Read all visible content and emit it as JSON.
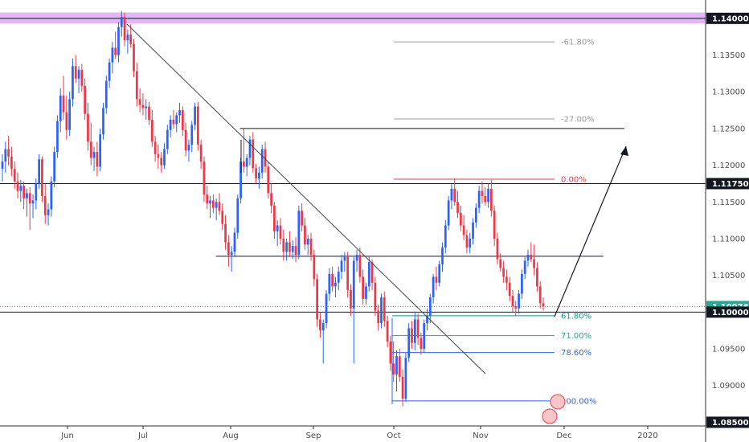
{
  "chart_data": {
    "type": "candlestick",
    "x_ticks": [
      "Jun",
      "Jul",
      "Aug",
      "Sep",
      "Oct",
      "Nov",
      "Dec",
      "2020"
    ],
    "y_ticks": [
      "1.13500",
      "1.13000",
      "1.12500",
      "1.12000",
      "1.11500",
      "1.11000",
      "1.10500",
      "1.09500",
      "1.09000"
    ],
    "ylim": [
      1.0845,
      1.1425
    ],
    "highlighted_prices": [
      {
        "label": "1.14000",
        "value": 1.14,
        "color": "#131722"
      },
      {
        "label": "1.11750",
        "value": 1.1175,
        "color": "#131722"
      },
      {
        "label": "1.10076",
        "value": 1.10076,
        "color": "#22ab94"
      },
      {
        "label": "1.10000",
        "value": 1.1,
        "color": "#131722"
      },
      {
        "label": "1.08500",
        "value": 1.085,
        "color": "#131722"
      }
    ],
    "fib_levels": [
      {
        "label": "-61.80%",
        "value": 1.1368,
        "color": "#9b9b9b"
      },
      {
        "label": "-27.00%",
        "value": 1.1263,
        "color": "#9b9b9b"
      },
      {
        "label": "0.00%",
        "value": 1.1181,
        "color": "#f23645"
      },
      {
        "label": "61.80%",
        "value": 1.0995,
        "color": "#089981"
      },
      {
        "label": "71.00%",
        "value": 1.0968,
        "color": "#26a69a"
      },
      {
        "label": "78.60%",
        "value": 1.0945,
        "color": "#2962ff"
      },
      {
        "label": "100.00%",
        "value": 1.0879,
        "color": "#2962ff"
      }
    ],
    "horizontal_lines": [
      {
        "value": 1.14,
        "from": 0,
        "to": 1
      },
      {
        "value": 1.1175,
        "from": 0,
        "to": 1
      },
      {
        "value": 1.1,
        "from": 0,
        "to": 1
      },
      {
        "value": 1.1076,
        "from": 0.306,
        "to": 0.855
      },
      {
        "value": 1.125,
        "from": 0.34,
        "to": 0.885
      }
    ],
    "zone": {
      "from": 1.1393,
      "to": 1.1408,
      "color": "#e0b8f5"
    },
    "candles": [
      [
        1.1195,
        1.1215,
        1.1178,
        1.1205
      ],
      [
        1.1205,
        1.1232,
        1.119,
        1.1222
      ],
      [
        1.1222,
        1.124,
        1.12,
        1.1212
      ],
      [
        1.1212,
        1.1225,
        1.1185,
        1.1195
      ],
      [
        1.1195,
        1.1205,
        1.1168,
        1.1178
      ],
      [
        1.1178,
        1.119,
        1.1155,
        1.1165
      ],
      [
        1.1165,
        1.118,
        1.115,
        1.1172
      ],
      [
        1.1172,
        1.1178,
        1.114,
        1.1155
      ],
      [
        1.1155,
        1.1168,
        1.113,
        1.1162
      ],
      [
        1.1162,
        1.117,
        1.1112,
        1.1148
      ],
      [
        1.1148,
        1.116,
        1.1128,
        1.1152
      ],
      [
        1.1152,
        1.1182,
        1.114,
        1.1175
      ],
      [
        1.1175,
        1.1215,
        1.1168,
        1.1208
      ],
      [
        1.1208,
        1.1212,
        1.115,
        1.1158
      ],
      [
        1.1158,
        1.1175,
        1.112,
        1.1132
      ],
      [
        1.1132,
        1.1148,
        1.1118,
        1.114
      ],
      [
        1.114,
        1.1185,
        1.113,
        1.1178
      ],
      [
        1.1178,
        1.1225,
        1.117,
        1.1218
      ],
      [
        1.1218,
        1.1268,
        1.121,
        1.126
      ],
      [
        1.126,
        1.1305,
        1.1245,
        1.1295
      ],
      [
        1.1295,
        1.1322,
        1.1262,
        1.1272
      ],
      [
        1.1272,
        1.1295,
        1.1235,
        1.1248
      ],
      [
        1.1248,
        1.13,
        1.124,
        1.129
      ],
      [
        1.129,
        1.1345,
        1.128,
        1.1335
      ],
      [
        1.1335,
        1.135,
        1.1312,
        1.1318
      ],
      [
        1.1318,
        1.1335,
        1.1298,
        1.133
      ],
      [
        1.133,
        1.1338,
        1.13,
        1.1308
      ],
      [
        1.1308,
        1.1318,
        1.1262,
        1.127
      ],
      [
        1.127,
        1.1285,
        1.122,
        1.1232
      ],
      [
        1.1232,
        1.1258,
        1.12,
        1.121
      ],
      [
        1.121,
        1.1225,
        1.1192,
        1.1218
      ],
      [
        1.1218,
        1.1232,
        1.1185,
        1.1198
      ],
      [
        1.1198,
        1.125,
        1.1192,
        1.1242
      ],
      [
        1.1242,
        1.1285,
        1.1235,
        1.1278
      ],
      [
        1.1278,
        1.1322,
        1.127,
        1.1315
      ],
      [
        1.1315,
        1.1345,
        1.1305,
        1.134
      ],
      [
        1.134,
        1.1368,
        1.1325,
        1.136
      ],
      [
        1.136,
        1.1382,
        1.1345,
        1.135
      ],
      [
        1.135,
        1.1395,
        1.134,
        1.1388
      ],
      [
        1.1388,
        1.141,
        1.1375,
        1.1402
      ],
      [
        1.1402,
        1.1408,
        1.1362,
        1.137
      ],
      [
        1.137,
        1.1385,
        1.1352,
        1.1378
      ],
      [
        1.1378,
        1.1392,
        1.136,
        1.1365
      ],
      [
        1.1365,
        1.1372,
        1.132,
        1.1328
      ],
      [
        1.1328,
        1.134,
        1.128,
        1.129
      ],
      [
        1.129,
        1.1305,
        1.1272,
        1.1282
      ],
      [
        1.1282,
        1.1298,
        1.1268,
        1.1278
      ],
      [
        1.1278,
        1.129,
        1.1262,
        1.128
      ],
      [
        1.128,
        1.1286,
        1.1255,
        1.1262
      ],
      [
        1.1262,
        1.1275,
        1.1225,
        1.1232
      ],
      [
        1.1232,
        1.124,
        1.1205,
        1.1215
      ],
      [
        1.1215,
        1.1228,
        1.1195,
        1.121
      ],
      [
        1.121,
        1.1218,
        1.119,
        1.12
      ],
      [
        1.12,
        1.123,
        1.1195,
        1.1222
      ],
      [
        1.1222,
        1.1255,
        1.1215,
        1.1248
      ],
      [
        1.1248,
        1.1268,
        1.1238,
        1.1262
      ],
      [
        1.1262,
        1.1275,
        1.125,
        1.1256
      ],
      [
        1.1256,
        1.1272,
        1.1245,
        1.1268
      ],
      [
        1.1268,
        1.1285,
        1.1258,
        1.1275
      ],
      [
        1.1275,
        1.128,
        1.124,
        1.1248
      ],
      [
        1.1248,
        1.1258,
        1.1212,
        1.122
      ],
      [
        1.122,
        1.1235,
        1.1205,
        1.1228
      ],
      [
        1.1228,
        1.126,
        1.1218,
        1.1255
      ],
      [
        1.1255,
        1.1285,
        1.1248,
        1.128
      ],
      [
        1.128,
        1.1286,
        1.122,
        1.1228
      ],
      [
        1.1228,
        1.1235,
        1.1195,
        1.1205
      ],
      [
        1.1205,
        1.1212,
        1.115,
        1.116
      ],
      [
        1.116,
        1.1172,
        1.114,
        1.1148
      ],
      [
        1.1148,
        1.1158,
        1.1128,
        1.1152
      ],
      [
        1.1152,
        1.116,
        1.1135,
        1.1142
      ],
      [
        1.1142,
        1.1155,
        1.1125,
        1.115
      ],
      [
        1.115,
        1.1162,
        1.1132,
        1.1138
      ],
      [
        1.1138,
        1.1148,
        1.1112,
        1.112
      ],
      [
        1.112,
        1.1132,
        1.1085,
        1.1095
      ],
      [
        1.1095,
        1.1105,
        1.1062,
        1.1078
      ],
      [
        1.1078,
        1.109,
        1.1055,
        1.1082
      ],
      [
        1.1082,
        1.1115,
        1.1075,
        1.1108
      ],
      [
        1.1108,
        1.116,
        1.11,
        1.1155
      ],
      [
        1.1155,
        1.121,
        1.1148,
        1.1205
      ],
      [
        1.1205,
        1.125,
        1.119,
        1.1198
      ],
      [
        1.1198,
        1.1215,
        1.1185,
        1.121
      ],
      [
        1.121,
        1.124,
        1.12,
        1.1235
      ],
      [
        1.1235,
        1.1245,
        1.119,
        1.1196
      ],
      [
        1.1196,
        1.1202,
        1.1175,
        1.1182
      ],
      [
        1.1182,
        1.1198,
        1.1168,
        1.119
      ],
      [
        1.119,
        1.1228,
        1.1182,
        1.1222
      ],
      [
        1.1222,
        1.1232,
        1.119,
        1.1198
      ],
      [
        1.1198,
        1.1205,
        1.1155,
        1.1162
      ],
      [
        1.1162,
        1.1175,
        1.1135,
        1.1145
      ],
      [
        1.1145,
        1.115,
        1.11,
        1.111
      ],
      [
        1.111,
        1.1125,
        1.109,
        1.1118
      ],
      [
        1.1118,
        1.1128,
        1.1092,
        1.11
      ],
      [
        1.11,
        1.1112,
        1.107,
        1.1082
      ],
      [
        1.1082,
        1.11,
        1.107,
        1.1095
      ],
      [
        1.1095,
        1.111,
        1.1075,
        1.1082
      ],
      [
        1.1082,
        1.1098,
        1.1072,
        1.109
      ],
      [
        1.109,
        1.1102,
        1.1068,
        1.1078
      ],
      [
        1.1078,
        1.1145,
        1.1072,
        1.1138
      ],
      [
        1.1138,
        1.1148,
        1.111,
        1.1118
      ],
      [
        1.1118,
        1.1128,
        1.1085,
        1.1092
      ],
      [
        1.1092,
        1.1105,
        1.1078,
        1.11
      ],
      [
        1.11,
        1.1108,
        1.107,
        1.1078
      ],
      [
        1.1078,
        1.1085,
        1.1035,
        1.1045
      ],
      [
        1.1045,
        1.1052,
        1.098,
        1.099
      ],
      [
        1.099,
        1.1,
        1.0965,
        1.0975
      ],
      [
        1.0975,
        1.099,
        1.093,
        1.0985
      ],
      [
        1.0985,
        1.103,
        1.0978,
        1.1025
      ],
      [
        1.1025,
        1.106,
        1.1015,
        1.1052
      ],
      [
        1.1052,
        1.1062,
        1.1028,
        1.1035
      ],
      [
        1.1035,
        1.1048,
        1.102,
        1.104
      ],
      [
        1.104,
        1.1062,
        1.103,
        1.1055
      ],
      [
        1.1055,
        1.1078,
        1.1045,
        1.107
      ],
      [
        1.107,
        1.1082,
        1.1055,
        1.1075
      ],
      [
        1.1075,
        1.1082,
        1.102,
        1.103
      ],
      [
        1.103,
        1.1038,
        1.0995,
        1.1005
      ],
      [
        1.1005,
        1.1075,
        1.093,
        1.107
      ],
      [
        1.107,
        1.1085,
        1.1055,
        1.1078
      ],
      [
        1.1078,
        1.1088,
        1.104,
        1.1048
      ],
      [
        1.1048,
        1.1058,
        1.101,
        1.1018
      ],
      [
        1.1018,
        1.104,
        1.101,
        1.1035
      ],
      [
        1.1035,
        1.1075,
        1.1028,
        1.1068
      ],
      [
        1.1068,
        1.1072,
        1.103,
        1.104
      ],
      [
        1.104,
        1.1048,
        1.0995,
        1.1002
      ],
      [
        1.1002,
        1.101,
        1.0975,
        1.0985
      ],
      [
        1.0985,
        1.1025,
        1.0978,
        1.102
      ],
      [
        1.102,
        1.1028,
        1.098,
        1.0988
      ],
      [
        1.0988,
        1.0995,
        1.0952,
        1.096
      ],
      [
        1.096,
        1.0968,
        1.092,
        1.093
      ],
      [
        1.093,
        1.096,
        1.0905,
        1.0915
      ],
      [
        1.0915,
        1.0948,
        1.0892,
        1.094
      ],
      [
        1.094,
        1.095,
        1.0905,
        1.0912
      ],
      [
        1.0912,
        1.0922,
        1.0872,
        1.0882
      ],
      [
        1.0882,
        1.0945,
        1.0878,
        1.0938
      ],
      [
        1.0938,
        1.0985,
        1.0932,
        1.0978
      ],
      [
        1.0978,
        1.0988,
        1.095,
        1.0958
      ],
      [
        1.0958,
        1.1,
        1.0948,
        1.099
      ],
      [
        1.099,
        1.0998,
        1.0955,
        1.0965
      ],
      [
        1.0965,
        1.0972,
        1.0942,
        1.095
      ],
      [
        1.095,
        1.099,
        1.0945,
        1.0985
      ],
      [
        1.0985,
        1.1005,
        1.0975,
        1.0995
      ],
      [
        1.0995,
        1.1025,
        1.0985,
        1.102
      ],
      [
        1.102,
        1.1052,
        1.1012,
        1.1048
      ],
      [
        1.1048,
        1.1062,
        1.103,
        1.104
      ],
      [
        1.104,
        1.107,
        1.1035,
        1.1065
      ],
      [
        1.1065,
        1.1095,
        1.1055,
        1.1088
      ],
      [
        1.1088,
        1.1125,
        1.108,
        1.1118
      ],
      [
        1.1118,
        1.1158,
        1.1112,
        1.1152
      ],
      [
        1.1152,
        1.1175,
        1.114,
        1.1168
      ],
      [
        1.1168,
        1.1182,
        1.1145,
        1.115
      ],
      [
        1.115,
        1.1165,
        1.1128,
        1.1135
      ],
      [
        1.1135,
        1.1145,
        1.111,
        1.1118
      ],
      [
        1.1118,
        1.1132,
        1.1098,
        1.1105
      ],
      [
        1.1105,
        1.1112,
        1.108,
        1.1088
      ],
      [
        1.1088,
        1.1108,
        1.108,
        1.11
      ],
      [
        1.11,
        1.1128,
        1.1092,
        1.1122
      ],
      [
        1.1122,
        1.1148,
        1.1115,
        1.1142
      ],
      [
        1.1142,
        1.1172,
        1.1135,
        1.1165
      ],
      [
        1.1165,
        1.1178,
        1.1148,
        1.1158
      ],
      [
        1.1158,
        1.117,
        1.1145,
        1.115
      ],
      [
        1.115,
        1.1175,
        1.1142,
        1.1168
      ],
      [
        1.1168,
        1.118,
        1.113,
        1.1138
      ],
      [
        1.1138,
        1.1145,
        1.109,
        1.11
      ],
      [
        1.11,
        1.1108,
        1.1065,
        1.1072
      ],
      [
        1.1072,
        1.108,
        1.1055,
        1.106
      ],
      [
        1.106,
        1.107,
        1.104,
        1.1048
      ],
      [
        1.1048,
        1.1058,
        1.103,
        1.104
      ],
      [
        1.104,
        1.1048,
        1.1015,
        1.1022
      ],
      [
        1.1022,
        1.103,
        1.1,
        1.1008
      ],
      [
        1.1008,
        1.1015,
        1.0995,
        1.1005
      ],
      [
        1.1005,
        1.103,
        1.0998,
        1.1025
      ],
      [
        1.1025,
        1.1058,
        1.1018,
        1.1052
      ],
      [
        1.1052,
        1.1075,
        1.1045,
        1.107
      ],
      [
        1.107,
        1.1085,
        1.1062,
        1.1078
      ],
      [
        1.1078,
        1.1095,
        1.1068,
        1.1072
      ],
      [
        1.1072,
        1.1092,
        1.105,
        1.106
      ],
      [
        1.106,
        1.1068,
        1.1028,
        1.1035
      ],
      [
        1.1035,
        1.1042,
        1.1005,
        1.1012
      ],
      [
        1.1012,
        1.102,
        1.1002,
        1.1008
      ]
    ]
  }
}
